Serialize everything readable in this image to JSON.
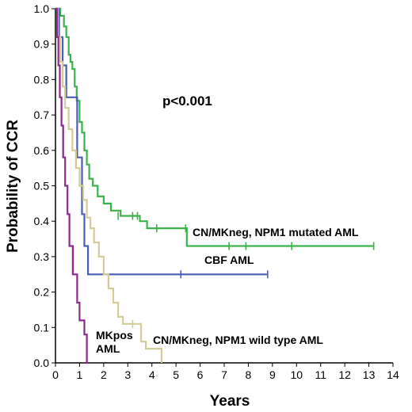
{
  "chart_data": {
    "type": "line",
    "xlabel": "Years",
    "ylabel": "Probability of CCR",
    "xlim": [
      0,
      14
    ],
    "ylim": [
      0,
      1.0
    ],
    "x_ticks": [
      "0",
      "1",
      "2",
      "3",
      "4",
      "5",
      "6",
      "7",
      "8",
      "9",
      "10",
      "11",
      "12",
      "13",
      "14"
    ],
    "y_ticks": [
      "0.0",
      "0.1",
      "0.2",
      "0.3",
      "0.4",
      "0.5",
      "0.6",
      "0.7",
      "0.8",
      "0.9",
      "1.0"
    ],
    "annotation": "p<0.001",
    "grid": false,
    "series": [
      {
        "name": "CN/MKneg, NPM1 mutated AML",
        "color": "#3cb34a",
        "label_lines": [
          "CN/MKneg, NPM1 mutated AML"
        ],
        "points": [
          [
            0,
            1.0
          ],
          [
            0.2,
            1.0
          ],
          [
            0.2,
            0.98
          ],
          [
            0.35,
            0.98
          ],
          [
            0.35,
            0.95
          ],
          [
            0.45,
            0.95
          ],
          [
            0.45,
            0.92
          ],
          [
            0.55,
            0.92
          ],
          [
            0.55,
            0.87
          ],
          [
            0.62,
            0.87
          ],
          [
            0.62,
            0.85
          ],
          [
            0.7,
            0.85
          ],
          [
            0.7,
            0.83
          ],
          [
            0.8,
            0.83
          ],
          [
            0.8,
            0.78
          ],
          [
            0.88,
            0.78
          ],
          [
            0.88,
            0.74
          ],
          [
            1.0,
            0.74
          ],
          [
            1.0,
            0.68
          ],
          [
            1.1,
            0.68
          ],
          [
            1.1,
            0.65
          ],
          [
            1.2,
            0.65
          ],
          [
            1.2,
            0.6
          ],
          [
            1.3,
            0.6
          ],
          [
            1.3,
            0.56
          ],
          [
            1.4,
            0.56
          ],
          [
            1.4,
            0.52
          ],
          [
            1.55,
            0.52
          ],
          [
            1.55,
            0.5
          ],
          [
            1.75,
            0.5
          ],
          [
            1.75,
            0.47
          ],
          [
            2.0,
            0.47
          ],
          [
            2.0,
            0.45
          ],
          [
            2.3,
            0.45
          ],
          [
            2.3,
            0.43
          ],
          [
            2.7,
            0.43
          ],
          [
            2.7,
            0.415
          ],
          [
            3.5,
            0.415
          ],
          [
            3.5,
            0.4
          ],
          [
            3.8,
            0.4
          ],
          [
            3.8,
            0.38
          ],
          [
            5.45,
            0.38
          ],
          [
            5.45,
            0.33
          ],
          [
            13.2,
            0.33
          ]
        ],
        "censors": [
          [
            2.6,
            0.415
          ],
          [
            3.2,
            0.415
          ],
          [
            3.4,
            0.415
          ],
          [
            4.2,
            0.38
          ],
          [
            5.4,
            0.38
          ],
          [
            7.2,
            0.33
          ],
          [
            7.9,
            0.33
          ],
          [
            9.8,
            0.33
          ],
          [
            13.2,
            0.33
          ]
        ]
      },
      {
        "name": "CBF AML",
        "color": "#4a5fb3",
        "label_lines": [
          "CBF AML"
        ],
        "points": [
          [
            0,
            1.0
          ],
          [
            0.15,
            1.0
          ],
          [
            0.15,
            0.92
          ],
          [
            0.3,
            0.92
          ],
          [
            0.3,
            0.84
          ],
          [
            0.45,
            0.84
          ],
          [
            0.45,
            0.75
          ],
          [
            0.9,
            0.75
          ],
          [
            0.9,
            0.58
          ],
          [
            1.1,
            0.58
          ],
          [
            1.1,
            0.42
          ],
          [
            1.2,
            0.42
          ],
          [
            1.2,
            0.33
          ],
          [
            1.35,
            0.33
          ],
          [
            1.35,
            0.25
          ],
          [
            8.8,
            0.25
          ]
        ],
        "censors": [
          [
            5.2,
            0.25
          ],
          [
            8.8,
            0.25
          ]
        ]
      },
      {
        "name": "CN/MKneg, NPM1 wild type AML",
        "color": "#d4cc96",
        "label_lines": [
          "CN/MKneg, NPM1 wild type AML"
        ],
        "points": [
          [
            0,
            1.0
          ],
          [
            0.1,
            1.0
          ],
          [
            0.1,
            0.92
          ],
          [
            0.2,
            0.92
          ],
          [
            0.2,
            0.85
          ],
          [
            0.3,
            0.85
          ],
          [
            0.3,
            0.78
          ],
          [
            0.4,
            0.78
          ],
          [
            0.4,
            0.72
          ],
          [
            0.55,
            0.72
          ],
          [
            0.55,
            0.66
          ],
          [
            0.7,
            0.66
          ],
          [
            0.7,
            0.6
          ],
          [
            0.85,
            0.6
          ],
          [
            0.85,
            0.55
          ],
          [
            1.0,
            0.55
          ],
          [
            1.0,
            0.5
          ],
          [
            1.15,
            0.5
          ],
          [
            1.15,
            0.46
          ],
          [
            1.3,
            0.46
          ],
          [
            1.3,
            0.41
          ],
          [
            1.45,
            0.41
          ],
          [
            1.45,
            0.38
          ],
          [
            1.6,
            0.38
          ],
          [
            1.6,
            0.34
          ],
          [
            1.8,
            0.34
          ],
          [
            1.8,
            0.3
          ],
          [
            2.0,
            0.3
          ],
          [
            2.0,
            0.25
          ],
          [
            2.2,
            0.25
          ],
          [
            2.2,
            0.21
          ],
          [
            2.4,
            0.21
          ],
          [
            2.4,
            0.17
          ],
          [
            2.6,
            0.17
          ],
          [
            2.6,
            0.13
          ],
          [
            2.8,
            0.13
          ],
          [
            2.8,
            0.11
          ],
          [
            3.55,
            0.11
          ],
          [
            3.55,
            0.06
          ],
          [
            3.75,
            0.06
          ],
          [
            3.75,
            0.04
          ],
          [
            4.4,
            0.04
          ],
          [
            4.4,
            0.0
          ]
        ],
        "censors": [
          [
            3.2,
            0.11
          ]
        ]
      },
      {
        "name": "MKpos AML",
        "color": "#8b2a8b",
        "label_lines": [
          "MKpos",
          "AML"
        ],
        "points": [
          [
            0,
            1.0
          ],
          [
            0.07,
            1.0
          ],
          [
            0.07,
            0.92
          ],
          [
            0.12,
            0.92
          ],
          [
            0.12,
            0.84
          ],
          [
            0.18,
            0.84
          ],
          [
            0.18,
            0.75
          ],
          [
            0.25,
            0.75
          ],
          [
            0.25,
            0.67
          ],
          [
            0.32,
            0.67
          ],
          [
            0.32,
            0.58
          ],
          [
            0.4,
            0.58
          ],
          [
            0.4,
            0.5
          ],
          [
            0.5,
            0.5
          ],
          [
            0.5,
            0.42
          ],
          [
            0.58,
            0.42
          ],
          [
            0.58,
            0.33
          ],
          [
            0.72,
            0.33
          ],
          [
            0.72,
            0.25
          ],
          [
            0.9,
            0.25
          ],
          [
            0.9,
            0.17
          ],
          [
            1.0,
            0.17
          ],
          [
            1.0,
            0.12
          ],
          [
            1.2,
            0.12
          ],
          [
            1.2,
            0.08
          ],
          [
            1.3,
            0.08
          ],
          [
            1.3,
            0.0
          ],
          [
            1.35,
            0.0
          ]
        ],
        "censors": []
      }
    ]
  }
}
